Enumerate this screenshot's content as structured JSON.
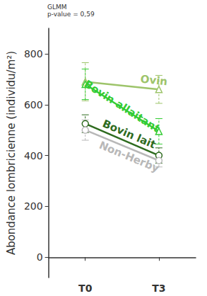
{
  "chart_data": {
    "type": "line",
    "title": "GLMM",
    "subtitle": "p-value = 0,59",
    "y_label": "Abondance lombricienne (individu/m²)",
    "categories": [
      "T0",
      "T3"
    ],
    "ylim": [
      -80,
      900
    ],
    "yticks": [
      0,
      200,
      400,
      600,
      800
    ],
    "grid": false,
    "series": [
      {
        "name": "Ovin",
        "color": "#9dc46a",
        "marker": "triangle",
        "line_style": "solid",
        "values": [
          690,
          660
        ],
        "errors": [
          75,
          55
        ]
      },
      {
        "name": "Bovin allaitant",
        "color": "#33cc33",
        "marker": "triangle",
        "line_style": "solid",
        "values": [
          680,
          495
        ],
        "errors": [
          60,
          50
        ]
      },
      {
        "name": "Bovin lait",
        "color": "#2e6b1e",
        "marker": "circle",
        "line_style": "solid",
        "values": [
          525,
          400
        ],
        "errors": [
          35,
          30
        ]
      },
      {
        "name": "Non-Herby",
        "color": "#b8b8b8",
        "marker": "circle",
        "line_style": "solid",
        "values": [
          500,
          380
        ],
        "errors": [
          40,
          25
        ]
      }
    ]
  }
}
